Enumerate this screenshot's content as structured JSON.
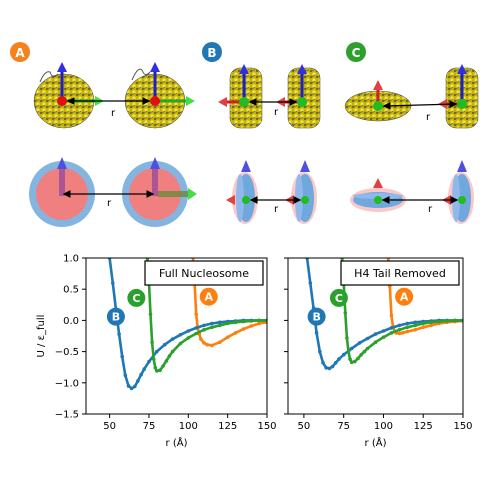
{
  "panels": [
    {
      "letter": "A",
      "color": "#f5821f"
    },
    {
      "letter": "B",
      "color": "#1f77b4"
    },
    {
      "letter": "C",
      "color": "#2ca02c"
    }
  ],
  "distance_label": "r",
  "colors": {
    "curve_A": "#ff7f0e",
    "curve_B": "#1f77b4",
    "curve_C": "#2ca02c",
    "axis": "#000000",
    "schematic_body": "#f08080",
    "schematic_rim": "#6fa8dc",
    "arrow_up": "#4f4fe0",
    "arrow_side": "#e04040",
    "arrow_green": "#44dd44"
  },
  "chart_data": [
    {
      "type": "line",
      "title": "Full Nucleosome",
      "xlabel": "r (Å)",
      "ylabel": "U / ε_full",
      "xlim": [
        35,
        150
      ],
      "ylim": [
        -1.5,
        1.0
      ],
      "xticks": [
        "50",
        "75",
        "100",
        "125",
        "150"
      ],
      "yticks": [
        "1.0",
        "0.5",
        "0.0",
        "−0.5",
        "−1.0",
        "−1.5"
      ],
      "series": [
        {
          "name": "A",
          "marker_label_pos": [
            113,
            0.38
          ],
          "x": [
            103,
            104,
            105,
            106,
            107,
            108,
            110,
            112,
            115,
            120,
            125,
            130,
            135,
            140,
            145,
            150
          ],
          "y": [
            1.0,
            0.6,
            0.1,
            -0.12,
            -0.22,
            -0.3,
            -0.36,
            -0.39,
            -0.4,
            -0.35,
            -0.27,
            -0.2,
            -0.14,
            -0.09,
            -0.05,
            -0.03
          ]
        },
        {
          "name": "B",
          "marker_label_pos": [
            54,
            0.06
          ],
          "x": [
            50,
            52,
            54,
            56,
            58,
            60,
            62,
            64,
            66,
            68,
            70,
            72,
            75,
            80,
            85,
            90,
            95,
            100,
            105,
            110,
            115,
            120,
            125,
            130,
            135,
            140,
            145,
            150
          ],
          "y": [
            1.0,
            0.6,
            0.18,
            -0.22,
            -0.58,
            -0.88,
            -1.05,
            -1.09,
            -1.06,
            -0.97,
            -0.87,
            -0.78,
            -0.66,
            -0.5,
            -0.39,
            -0.3,
            -0.23,
            -0.17,
            -0.12,
            -0.08,
            -0.05,
            -0.03,
            -0.02,
            -0.01,
            0.0,
            0.0,
            0.0,
            0.0
          ]
        },
        {
          "name": "C",
          "marker_label_pos": [
            67,
            0.36
          ],
          "x": [
            74,
            75,
            76,
            77,
            78,
            79,
            80,
            82,
            84,
            86,
            88,
            90,
            95,
            100,
            105,
            110,
            115,
            120,
            125,
            130,
            135,
            140,
            145,
            150
          ],
          "y": [
            1.0,
            0.6,
            0.1,
            -0.35,
            -0.62,
            -0.76,
            -0.81,
            -0.8,
            -0.73,
            -0.65,
            -0.57,
            -0.5,
            -0.37,
            -0.28,
            -0.21,
            -0.15,
            -0.11,
            -0.08,
            -0.05,
            -0.03,
            -0.02,
            -0.01,
            0.0,
            0.0
          ]
        }
      ]
    },
    {
      "type": "line",
      "title": "H4 Tail Removed",
      "xlabel": "r (Å)",
      "ylabel": "",
      "xlim": [
        40,
        150
      ],
      "ylim": [
        -1.5,
        1.0
      ],
      "xticks": [
        "50",
        "75",
        "100",
        "125",
        "150"
      ],
      "yticks": [],
      "series": [
        {
          "name": "A",
          "marker_label_pos": [
            113,
            0.38
          ],
          "x": [
            103,
            104,
            105,
            106,
            107,
            108,
            110,
            112,
            115,
            120,
            125,
            130,
            135,
            140,
            145,
            150
          ],
          "y": [
            1.0,
            0.55,
            0.08,
            -0.1,
            -0.17,
            -0.2,
            -0.21,
            -0.2,
            -0.18,
            -0.15,
            -0.11,
            -0.08,
            -0.05,
            -0.03,
            -0.02,
            -0.01
          ]
        },
        {
          "name": "B",
          "marker_label_pos": [
            58,
            0.06
          ],
          "x": [
            52,
            54,
            56,
            58,
            60,
            62,
            64,
            66,
            68,
            70,
            72,
            75,
            80,
            85,
            90,
            95,
            100,
            105,
            110,
            115,
            120,
            125,
            130,
            135,
            140,
            145,
            150
          ],
          "y": [
            1.0,
            0.6,
            0.2,
            -0.2,
            -0.5,
            -0.68,
            -0.76,
            -0.77,
            -0.74,
            -0.68,
            -0.62,
            -0.55,
            -0.45,
            -0.36,
            -0.29,
            -0.22,
            -0.17,
            -0.12,
            -0.08,
            -0.05,
            -0.03,
            -0.02,
            -0.01,
            0.0,
            0.0,
            0.0,
            0.0
          ]
        },
        {
          "name": "C",
          "marker_label_pos": [
            72,
            0.36
          ],
          "x": [
            74,
            75,
            76,
            77,
            78,
            79,
            80,
            82,
            84,
            86,
            88,
            90,
            95,
            100,
            105,
            110,
            115,
            120,
            125,
            130,
            135,
            140,
            145,
            150
          ],
          "y": [
            1.0,
            0.6,
            0.12,
            -0.28,
            -0.5,
            -0.62,
            -0.67,
            -0.66,
            -0.61,
            -0.55,
            -0.5,
            -0.45,
            -0.35,
            -0.27,
            -0.2,
            -0.15,
            -0.11,
            -0.08,
            -0.05,
            -0.03,
            -0.02,
            -0.01,
            0.0,
            0.0
          ]
        }
      ]
    }
  ]
}
